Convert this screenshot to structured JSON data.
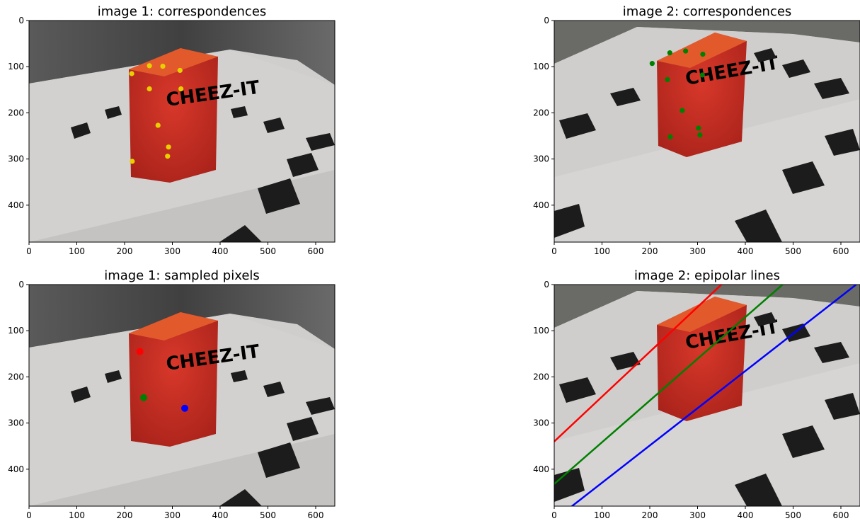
{
  "chart_data": [
    {
      "type": "scatter",
      "title": "image 1: correspondences",
      "xlim": [
        0,
        640
      ],
      "ylim": [
        480,
        0
      ],
      "xticks": [
        0,
        100,
        200,
        300,
        400,
        500,
        600
      ],
      "yticks": [
        0,
        100,
        200,
        300,
        400
      ],
      "background": "photo: red CHEEZ-IT cracker box on a white table with black square fiducial markers",
      "series": [
        {
          "color": "#e8d000",
          "points": [
            [
              215,
              115
            ],
            [
              252,
              98
            ],
            [
              280,
              99
            ],
            [
              316,
              108
            ],
            [
              252,
              148
            ],
            [
              318,
              148
            ],
            [
              270,
              227
            ],
            [
              292,
              274
            ],
            [
              290,
              294
            ],
            [
              216,
              305
            ]
          ]
        }
      ]
    },
    {
      "type": "scatter",
      "title": "image 2: correspondences",
      "xlim": [
        0,
        640
      ],
      "ylim": [
        480,
        0
      ],
      "xticks": [
        0,
        100,
        200,
        300,
        400,
        500,
        600
      ],
      "yticks": [
        0,
        100,
        200,
        300,
        400
      ],
      "background": "photo: the same cracker box viewed from another camera pose",
      "series": [
        {
          "color": "#008000",
          "points": [
            [
              205,
              93
            ],
            [
              242,
              70
            ],
            [
              275,
              66
            ],
            [
              311,
              73
            ],
            [
              237,
              128
            ],
            [
              310,
              118
            ],
            [
              268,
              195
            ],
            [
              302,
              233
            ],
            [
              305,
              248
            ],
            [
              243,
              252
            ]
          ]
        }
      ]
    },
    {
      "type": "scatter",
      "title": "image 1: sampled pixels",
      "xlim": [
        0,
        640
      ],
      "ylim": [
        480,
        0
      ],
      "xticks": [
        0,
        100,
        200,
        300,
        400,
        500,
        600
      ],
      "yticks": [
        0,
        100,
        200,
        300,
        400
      ],
      "background": "photo: same view as image 1",
      "series": [
        {
          "color": "#ff0000",
          "points": [
            [
              232,
              145
            ]
          ]
        },
        {
          "color": "#008000",
          "points": [
            [
              240,
              245
            ]
          ]
        },
        {
          "color": "#0000ff",
          "points": [
            [
              326,
              268
            ]
          ]
        }
      ]
    },
    {
      "type": "line",
      "title": "image 2: epipolar lines",
      "xlim": [
        0,
        640
      ],
      "ylim": [
        480,
        0
      ],
      "xticks": [
        0,
        100,
        200,
        300,
        400,
        500,
        600
      ],
      "yticks": [
        0,
        100,
        200,
        300,
        400
      ],
      "background": "photo: same view as image 2",
      "series": [
        {
          "color": "#ff0000",
          "x": [
            0,
            350
          ],
          "y": [
            340,
            0
          ]
        },
        {
          "color": "#008000",
          "x": [
            0,
            478
          ],
          "y": [
            432,
            0
          ]
        },
        {
          "color": "#0000ff",
          "x": [
            0,
            632
          ],
          "y": [
            510,
            0
          ]
        }
      ]
    }
  ]
}
